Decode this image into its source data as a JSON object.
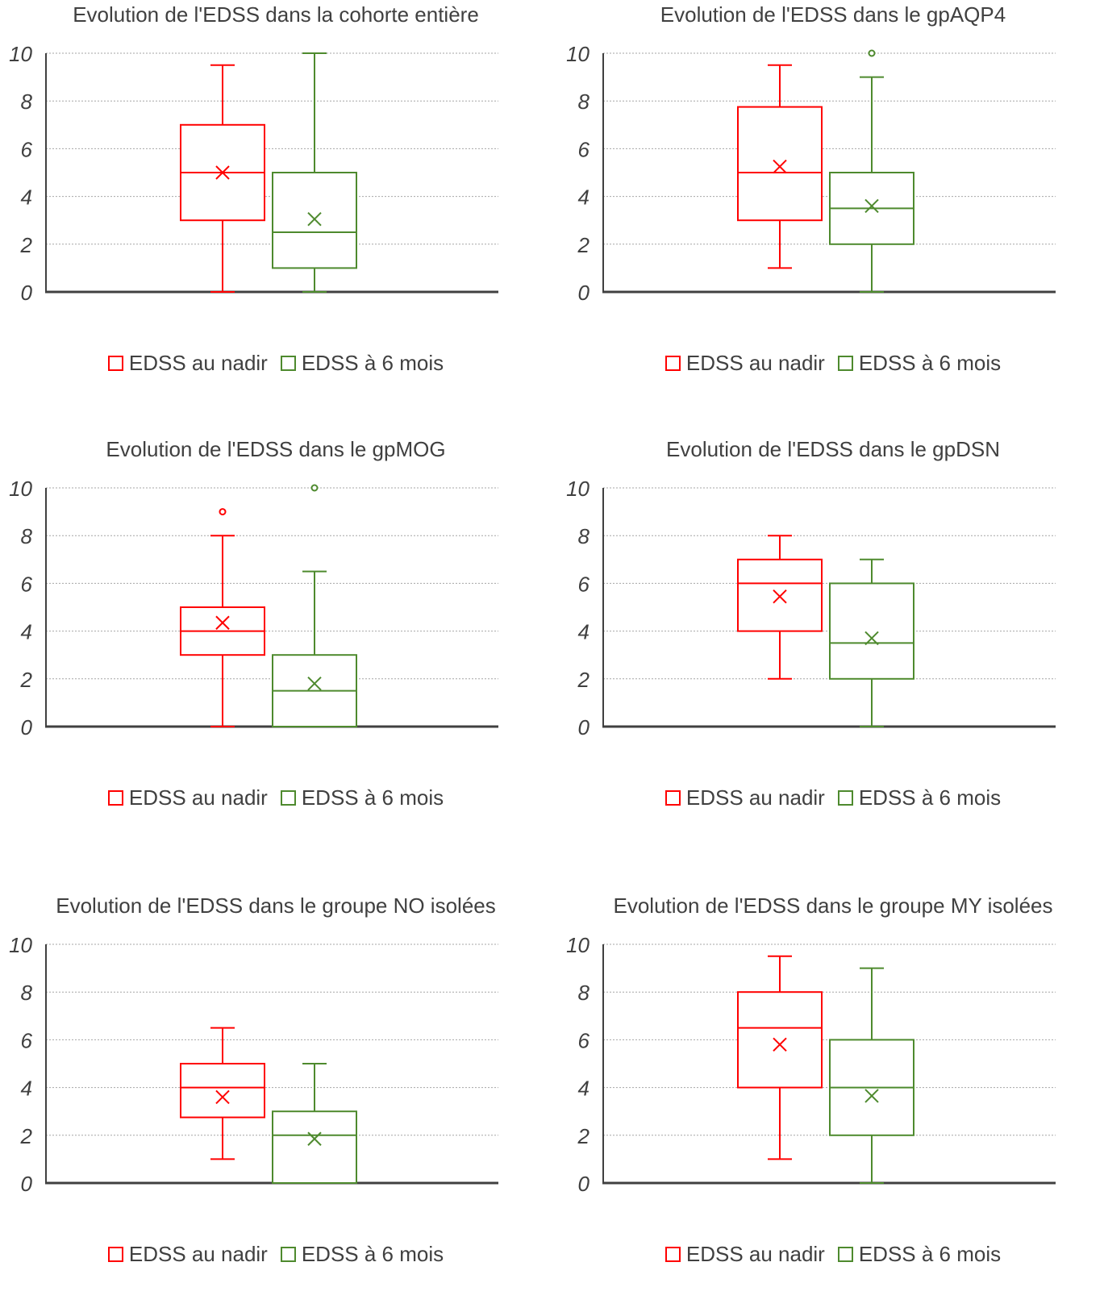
{
  "colors": {
    "nadir": "#ff0000",
    "six_months": "#4e8a2e",
    "grid": "#a6a6a6",
    "axis": "#404040",
    "text": "#404040"
  },
  "chart_data": [
    {
      "type": "box",
      "title": "Evolution de l'EDSS dans la cohorte entière",
      "ylim": [
        0,
        10
      ],
      "yticks": [
        "0",
        "2",
        "4",
        "6",
        "8",
        "10"
      ],
      "grid": true,
      "legend_position": "bottom",
      "series": [
        {
          "name": "EDSS au nadir",
          "min": 0,
          "q1": 3,
          "median": 5,
          "q3": 7,
          "max": 9.5,
          "mean": 5.0,
          "outliers": []
        },
        {
          "name": "EDSS à 6 mois",
          "min": 0,
          "q1": 1,
          "median": 2.5,
          "q3": 5,
          "max": 10,
          "mean": 3.05,
          "outliers": []
        }
      ]
    },
    {
      "type": "box",
      "title": "Evolution de l'EDSS dans le gpAQP4",
      "ylim": [
        0,
        10
      ],
      "yticks": [
        "0",
        "2",
        "4",
        "6",
        "8",
        "10"
      ],
      "grid": true,
      "legend_position": "bottom",
      "series": [
        {
          "name": "EDSS au nadir",
          "min": 1,
          "q1": 3,
          "median": 5,
          "q3": 7.75,
          "max": 9.5,
          "mean": 5.25,
          "outliers": []
        },
        {
          "name": "EDSS à 6 mois",
          "min": 0,
          "q1": 2,
          "median": 3.5,
          "q3": 5,
          "max": 9,
          "mean": 3.6,
          "outliers": [
            10
          ]
        }
      ]
    },
    {
      "type": "box",
      "title": "Evolution de l'EDSS dans le gpMOG",
      "ylim": [
        0,
        10
      ],
      "yticks": [
        "0",
        "2",
        "4",
        "6",
        "8",
        "10"
      ],
      "grid": true,
      "legend_position": "bottom",
      "series": [
        {
          "name": "EDSS au nadir",
          "min": 0,
          "q1": 3,
          "median": 4,
          "q3": 5,
          "max": 8,
          "mean": 4.35,
          "outliers": [
            9
          ]
        },
        {
          "name": "EDSS à 6 mois",
          "min": 0,
          "q1": 0,
          "median": 1.5,
          "q3": 3,
          "max": 6.5,
          "mean": 1.8,
          "outliers": [
            10
          ]
        }
      ]
    },
    {
      "type": "box",
      "title": "Evolution de l'EDSS dans le gpDSN",
      "ylim": [
        0,
        10
      ],
      "yticks": [
        "0",
        "2",
        "4",
        "6",
        "8",
        "10"
      ],
      "grid": true,
      "legend_position": "bottom",
      "series": [
        {
          "name": "EDSS au nadir",
          "min": 2,
          "q1": 4,
          "median": 6,
          "q3": 7,
          "max": 8,
          "mean": 5.45,
          "outliers": []
        },
        {
          "name": "EDSS à 6 mois",
          "min": 0,
          "q1": 2,
          "median": 3.5,
          "q3": 6,
          "max": 7,
          "mean": 3.7,
          "outliers": []
        }
      ]
    },
    {
      "type": "box",
      "title": "Evolution de l'EDSS dans le groupe NO isolées",
      "ylim": [
        0,
        10
      ],
      "yticks": [
        "0",
        "2",
        "4",
        "6",
        "8",
        "10"
      ],
      "grid": true,
      "legend_position": "bottom",
      "series": [
        {
          "name": "EDSS au nadir",
          "min": 1,
          "q1": 2.75,
          "median": 4,
          "q3": 5,
          "max": 6.5,
          "mean": 3.6,
          "outliers": []
        },
        {
          "name": "EDSS à 6 mois",
          "min": 0,
          "q1": 0,
          "median": 2,
          "q3": 3,
          "max": 5,
          "mean": 1.85,
          "outliers": []
        }
      ]
    },
    {
      "type": "box",
      "title": "Evolution de l'EDSS dans le groupe MY isolées",
      "ylim": [
        0,
        10
      ],
      "yticks": [
        "0",
        "2",
        "4",
        "6",
        "8",
        "10"
      ],
      "grid": true,
      "legend_position": "bottom",
      "series": [
        {
          "name": "EDSS au nadir",
          "min": 1,
          "q1": 4,
          "median": 6.5,
          "q3": 8,
          "max": 9.5,
          "mean": 5.8,
          "outliers": []
        },
        {
          "name": "EDSS à 6 mois",
          "min": 0,
          "q1": 2,
          "median": 4,
          "q3": 6,
          "max": 9,
          "mean": 3.65,
          "outliers": []
        }
      ]
    }
  ]
}
